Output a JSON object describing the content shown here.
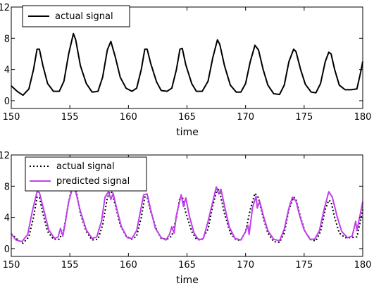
{
  "chart_data": [
    {
      "type": "line",
      "xlabel": "time",
      "ylabel": "",
      "xlim": [
        150,
        180
      ],
      "ylim": [
        -1,
        12
      ],
      "xticks": [
        150,
        155,
        160,
        165,
        170,
        175,
        180
      ],
      "yticks": [
        0,
        4,
        8,
        12
      ],
      "legend_position": "top-left",
      "series": [
        {
          "name": "actual signal",
          "color": "#000000",
          "style": "solid",
          "points": [
            [
              150,
              1.9
            ],
            [
              150.5,
              1.2
            ],
            [
              151,
              0.7
            ],
            [
              151.5,
              1.5
            ],
            [
              151.9,
              4.0
            ],
            [
              152.2,
              6.6
            ],
            [
              152.4,
              6.6
            ],
            [
              152.7,
              4.5
            ],
            [
              153.1,
              2.2
            ],
            [
              153.6,
              1.2
            ],
            [
              154.1,
              1.2
            ],
            [
              154.5,
              2.5
            ],
            [
              154.9,
              6.0
            ],
            [
              155.3,
              8.6
            ],
            [
              155.5,
              7.8
            ],
            [
              155.9,
              4.5
            ],
            [
              156.4,
              2.2
            ],
            [
              156.9,
              1.1
            ],
            [
              157.4,
              1.2
            ],
            [
              157.8,
              3.0
            ],
            [
              158.2,
              6.5
            ],
            [
              158.5,
              7.6
            ],
            [
              158.9,
              5.5
            ],
            [
              159.3,
              3.0
            ],
            [
              159.8,
              1.6
            ],
            [
              160.3,
              1.2
            ],
            [
              160.7,
              1.6
            ],
            [
              161.1,
              4.0
            ],
            [
              161.4,
              6.6
            ],
            [
              161.6,
              6.6
            ],
            [
              161.9,
              4.8
            ],
            [
              162.4,
              2.4
            ],
            [
              162.8,
              1.3
            ],
            [
              163.3,
              1.2
            ],
            [
              163.7,
              1.6
            ],
            [
              164.1,
              4.0
            ],
            [
              164.4,
              6.6
            ],
            [
              164.6,
              6.7
            ],
            [
              164.9,
              4.6
            ],
            [
              165.4,
              2.2
            ],
            [
              165.8,
              1.2
            ],
            [
              166.3,
              1.2
            ],
            [
              166.8,
              2.5
            ],
            [
              167.2,
              5.5
            ],
            [
              167.6,
              7.8
            ],
            [
              167.8,
              7.2
            ],
            [
              168.2,
              4.5
            ],
            [
              168.7,
              2.0
            ],
            [
              169.2,
              1.1
            ],
            [
              169.6,
              1.1
            ],
            [
              170,
              2.2
            ],
            [
              170.4,
              5.0
            ],
            [
              170.8,
              7.1
            ],
            [
              171.1,
              6.5
            ],
            [
              171.5,
              4.0
            ],
            [
              171.9,
              2.0
            ],
            [
              172.4,
              0.9
            ],
            [
              172.9,
              0.8
            ],
            [
              173.3,
              2.0
            ],
            [
              173.7,
              5.0
            ],
            [
              174.1,
              6.6
            ],
            [
              174.3,
              6.3
            ],
            [
              174.7,
              4.0
            ],
            [
              175.1,
              2.1
            ],
            [
              175.6,
              1.1
            ],
            [
              176,
              1.0
            ],
            [
              176.4,
              2.2
            ],
            [
              176.8,
              5.0
            ],
            [
              177.1,
              6.2
            ],
            [
              177.3,
              6.0
            ],
            [
              177.6,
              4.0
            ],
            [
              178,
              2.0
            ],
            [
              178.5,
              1.4
            ],
            [
              179,
              1.4
            ],
            [
              179.5,
              1.5
            ],
            [
              179.8,
              3.5
            ],
            [
              180,
              5.0
            ]
          ]
        }
      ]
    },
    {
      "type": "line",
      "xlabel": "time",
      "ylabel": "",
      "xlim": [
        150,
        180
      ],
      "ylim": [
        -1,
        12
      ],
      "xticks": [
        150,
        155,
        160,
        165,
        170,
        175,
        180
      ],
      "yticks": [
        0,
        4,
        8,
        12
      ],
      "legend_position": "top-left",
      "series": [
        {
          "name": "actual signal",
          "color": "#000000",
          "style": "dotted",
          "points": [
            [
              150,
              1.9
            ],
            [
              150.5,
              1.2
            ],
            [
              151,
              0.7
            ],
            [
              151.5,
              1.5
            ],
            [
              151.9,
              4.0
            ],
            [
              152.2,
              6.6
            ],
            [
              152.4,
              6.6
            ],
            [
              152.7,
              4.5
            ],
            [
              153.1,
              2.2
            ],
            [
              153.6,
              1.2
            ],
            [
              154.1,
              1.2
            ],
            [
              154.5,
              2.5
            ],
            [
              154.9,
              6.0
            ],
            [
              155.3,
              8.6
            ],
            [
              155.5,
              7.8
            ],
            [
              155.9,
              4.5
            ],
            [
              156.4,
              2.2
            ],
            [
              156.9,
              1.1
            ],
            [
              157.4,
              1.2
            ],
            [
              157.8,
              3.0
            ],
            [
              158.2,
              6.5
            ],
            [
              158.5,
              7.6
            ],
            [
              158.9,
              5.5
            ],
            [
              159.3,
              3.0
            ],
            [
              159.8,
              1.6
            ],
            [
              160.3,
              1.2
            ],
            [
              160.7,
              1.6
            ],
            [
              161.1,
              4.0
            ],
            [
              161.4,
              6.6
            ],
            [
              161.6,
              6.6
            ],
            [
              161.9,
              4.8
            ],
            [
              162.4,
              2.4
            ],
            [
              162.8,
              1.3
            ],
            [
              163.3,
              1.2
            ],
            [
              163.7,
              1.6
            ],
            [
              164.1,
              4.0
            ],
            [
              164.4,
              6.6
            ],
            [
              164.6,
              6.7
            ],
            [
              164.9,
              4.6
            ],
            [
              165.4,
              2.2
            ],
            [
              165.8,
              1.2
            ],
            [
              166.3,
              1.2
            ],
            [
              166.8,
              2.5
            ],
            [
              167.2,
              5.5
            ],
            [
              167.6,
              7.8
            ],
            [
              167.8,
              7.2
            ],
            [
              168.2,
              4.5
            ],
            [
              168.7,
              2.0
            ],
            [
              169.2,
              1.1
            ],
            [
              169.6,
              1.1
            ],
            [
              170,
              2.2
            ],
            [
              170.4,
              5.0
            ],
            [
              170.8,
              7.1
            ],
            [
              171.1,
              6.5
            ],
            [
              171.5,
              4.0
            ],
            [
              171.9,
              2.0
            ],
            [
              172.4,
              0.9
            ],
            [
              172.9,
              0.8
            ],
            [
              173.3,
              2.0
            ],
            [
              173.7,
              5.0
            ],
            [
              174.1,
              6.6
            ],
            [
              174.3,
              6.3
            ],
            [
              174.7,
              4.0
            ],
            [
              175.1,
              2.1
            ],
            [
              175.6,
              1.1
            ],
            [
              176,
              1.0
            ],
            [
              176.4,
              2.2
            ],
            [
              176.8,
              5.0
            ],
            [
              177.1,
              6.2
            ],
            [
              177.3,
              6.0
            ],
            [
              177.6,
              4.0
            ],
            [
              178,
              2.0
            ],
            [
              178.5,
              1.4
            ],
            [
              179,
              1.4
            ],
            [
              179.5,
              1.5
            ],
            [
              179.8,
              3.5
            ],
            [
              180,
              5.0
            ]
          ]
        },
        {
          "name": "predicted signal",
          "color": "#bf40ec",
          "style": "solid",
          "points": [
            [
              150,
              1.9
            ],
            [
              150.4,
              1.1
            ],
            [
              150.9,
              0.9
            ],
            [
              151.4,
              1.8
            ],
            [
              151.8,
              4.8
            ],
            [
              152.2,
              7.3
            ],
            [
              152.4,
              7.2
            ],
            [
              152.8,
              4.8
            ],
            [
              153.2,
              2.4
            ],
            [
              153.7,
              1.3
            ],
            [
              154.0,
              1.5
            ],
            [
              154.2,
              2.6
            ],
            [
              154.4,
              1.6
            ],
            [
              154.6,
              3.2
            ],
            [
              154.9,
              6.0
            ],
            [
              155.2,
              7.6
            ],
            [
              155.5,
              7.3
            ],
            [
              155.9,
              4.8
            ],
            [
              156.4,
              2.4
            ],
            [
              156.9,
              1.3
            ],
            [
              157.3,
              1.5
            ],
            [
              157.7,
              3.5
            ],
            [
              158.0,
              6.6
            ],
            [
              158.3,
              7.3
            ],
            [
              158.5,
              6.3
            ],
            [
              158.7,
              7.1
            ],
            [
              159.0,
              5.1
            ],
            [
              159.4,
              2.8
            ],
            [
              159.9,
              1.4
            ],
            [
              160.3,
              1.3
            ],
            [
              160.7,
              2.3
            ],
            [
              161.0,
              4.6
            ],
            [
              161.3,
              6.9
            ],
            [
              161.6,
              7.0
            ],
            [
              161.9,
              5.0
            ],
            [
              162.3,
              2.6
            ],
            [
              162.8,
              1.4
            ],
            [
              163.2,
              1.1
            ],
            [
              163.5,
              1.8
            ],
            [
              163.7,
              2.8
            ],
            [
              163.9,
              2.0
            ],
            [
              164.1,
              4.3
            ],
            [
              164.5,
              6.9
            ],
            [
              164.7,
              5.4
            ],
            [
              164.9,
              6.5
            ],
            [
              165.2,
              4.2
            ],
            [
              165.6,
              2.0
            ],
            [
              166.0,
              1.1
            ],
            [
              166.4,
              1.3
            ],
            [
              166.8,
              3.5
            ],
            [
              167.2,
              6.0
            ],
            [
              167.5,
              7.9
            ],
            [
              167.7,
              7.0
            ],
            [
              167.9,
              7.6
            ],
            [
              168.2,
              5.5
            ],
            [
              168.6,
              2.8
            ],
            [
              169.1,
              1.3
            ],
            [
              169.6,
              1.1
            ],
            [
              170.0,
              2.2
            ],
            [
              170.2,
              3.0
            ],
            [
              170.3,
              1.8
            ],
            [
              170.6,
              5.3
            ],
            [
              170.9,
              6.7
            ],
            [
              171.0,
              5.2
            ],
            [
              171.2,
              6.1
            ],
            [
              171.5,
              4.3
            ],
            [
              171.9,
              2.3
            ],
            [
              172.4,
              1.2
            ],
            [
              172.9,
              1.0
            ],
            [
              173.3,
              2.5
            ],
            [
              173.7,
              5.2
            ],
            [
              174.0,
              6.6
            ],
            [
              174.3,
              6.1
            ],
            [
              174.6,
              4.3
            ],
            [
              175.0,
              2.4
            ],
            [
              175.5,
              1.2
            ],
            [
              175.9,
              1.2
            ],
            [
              176.3,
              2.3
            ],
            [
              176.7,
              5.0
            ],
            [
              177.1,
              7.3
            ],
            [
              177.4,
              6.6
            ],
            [
              177.8,
              4.2
            ],
            [
              178.2,
              2.2
            ],
            [
              178.7,
              1.4
            ],
            [
              179.1,
              1.6
            ],
            [
              179.4,
              3.5
            ],
            [
              179.5,
              2.3
            ],
            [
              179.8,
              4.5
            ],
            [
              180,
              6.0
            ]
          ]
        }
      ]
    }
  ]
}
